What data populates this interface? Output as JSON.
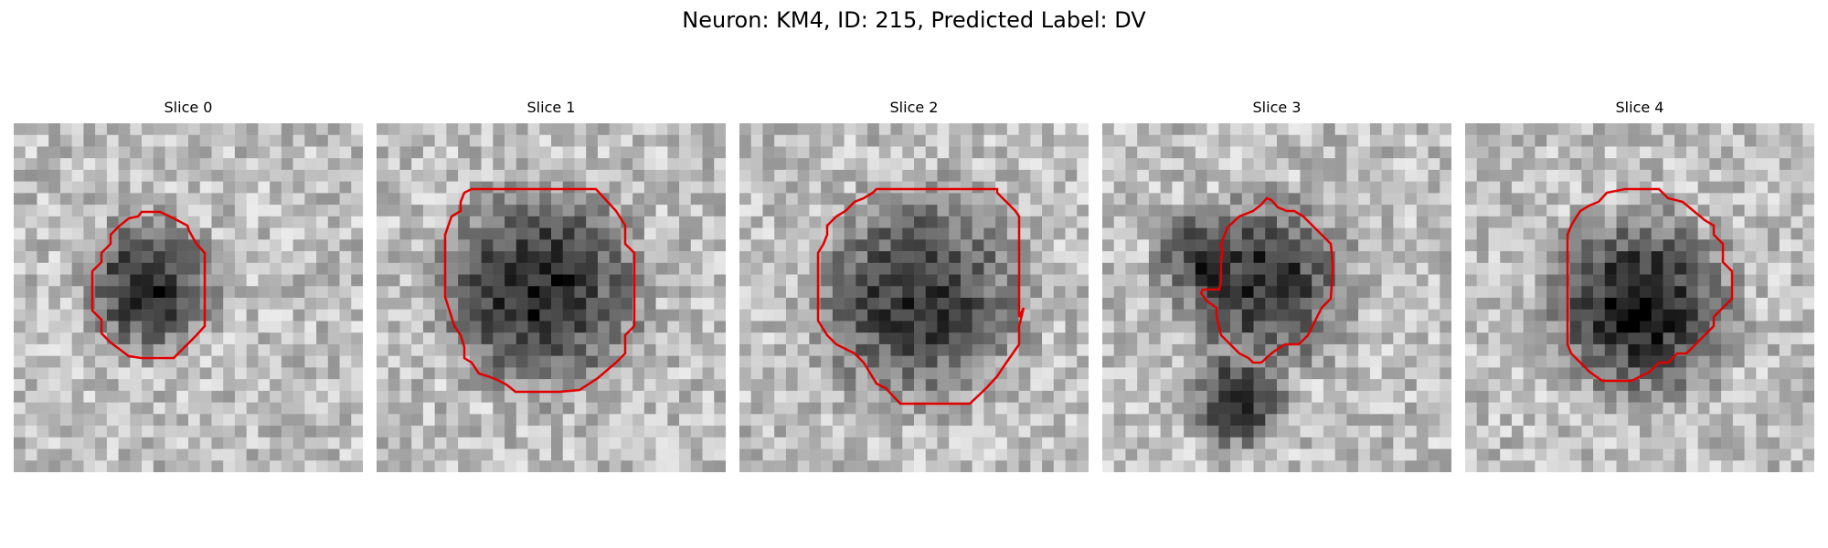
{
  "figure": {
    "title": "Neuron: KM4, ID: 215, Predicted Label: DV"
  },
  "contour_color": "#e00000",
  "panels": [
    {
      "title": "Slice 0",
      "blob_gray": 45,
      "seed": 11
    },
    {
      "title": "Slice 1",
      "blob_gray": 40,
      "seed": 23
    },
    {
      "title": "Slice 2",
      "blob_gray": 55,
      "seed": 37
    },
    {
      "title": "Slice 3",
      "blob_gray": 50,
      "seed": 41
    },
    {
      "title": "Slice 4",
      "blob_gray": 30,
      "seed": 53
    }
  ]
}
